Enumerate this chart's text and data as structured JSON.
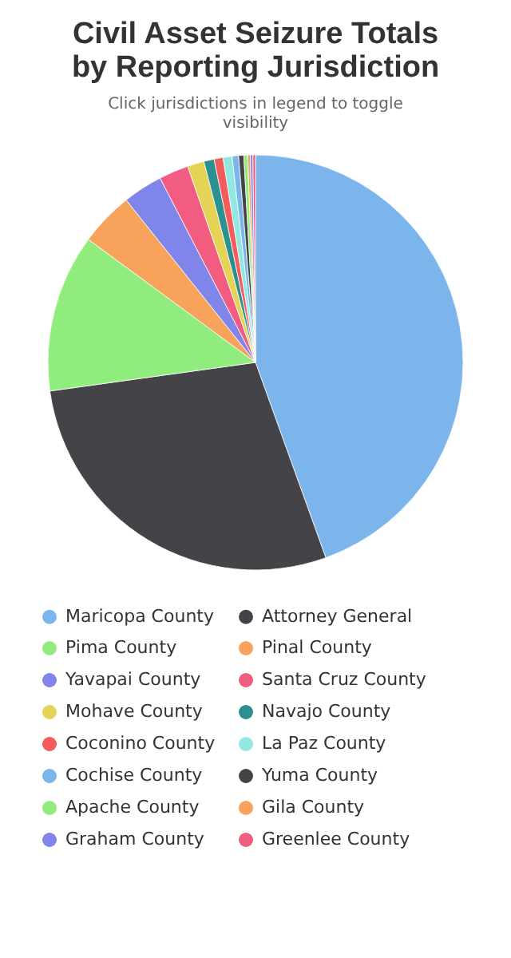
{
  "chart_data": {
    "type": "pie",
    "title": "Civil Asset Seizure Totals by Reporting Jurisdiction",
    "subtitle": "Click jurisdictions in legend to toggle visibility",
    "categories": [
      "Maricopa County",
      "Attorney General",
      "Pima County",
      "Pinal County",
      "Yavapai County",
      "Santa Cruz County",
      "Mohave County",
      "Navajo County",
      "Coconino County",
      "La Paz County",
      "Cochise County",
      "Yuma County",
      "Apache County",
      "Gila County",
      "Graham County",
      "Greenlee County"
    ],
    "values": [
      44.5,
      28.3,
      12.3,
      4.2,
      3.1,
      2.3,
      1.3,
      0.8,
      0.7,
      0.7,
      0.5,
      0.4,
      0.3,
      0.2,
      0.2,
      0.2
    ],
    "colors": [
      "#7cb5ec",
      "#434348",
      "#90ed7d",
      "#f7a35c",
      "#8085e9",
      "#f15c80",
      "#e4d354",
      "#2b908f",
      "#f45b5b",
      "#91e8e1",
      "#7cb5ec",
      "#434348",
      "#90ed7d",
      "#f7a35c",
      "#8085e9",
      "#f15c80"
    ],
    "legend": "bottom"
  }
}
